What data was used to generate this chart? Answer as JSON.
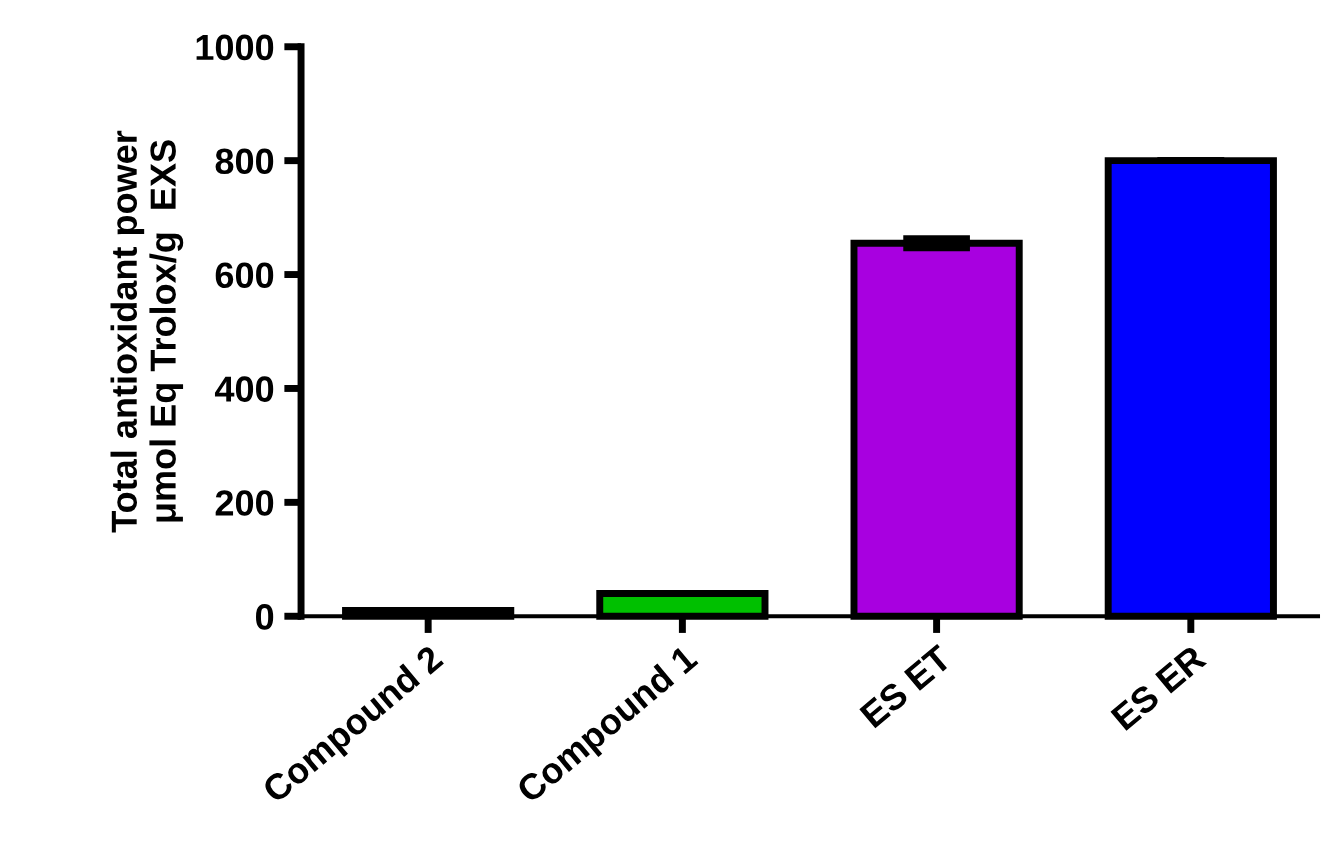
{
  "chart_data": {
    "type": "bar",
    "ylabel": "Total antioxidant power\nμmol Eq Trolox/g  EXS",
    "categories": [
      "Compound 2",
      "Compound 1",
      "ES ET",
      "ES ER"
    ],
    "values": [
      10,
      40,
      655,
      800
    ],
    "errors": [
      null,
      null,
      8,
      null
    ],
    "colors": [
      "#000000",
      "#00c000",
      "#a800e0",
      "#0000ff"
    ],
    "ylim": [
      0,
      1000
    ],
    "yticks": [
      0,
      200,
      400,
      600,
      800,
      1000
    ],
    "grid": false,
    "legend": false
  }
}
